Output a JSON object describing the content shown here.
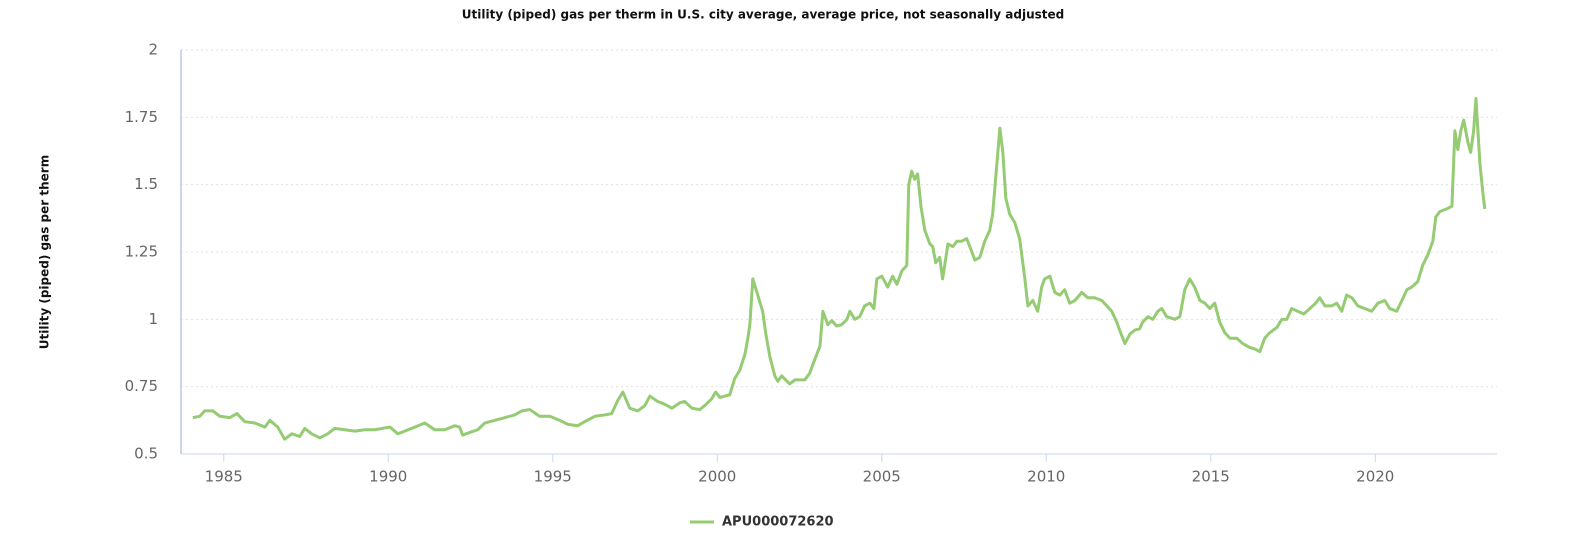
{
  "chart_data": {
    "type": "line",
    "title": "Utility (piped) gas per therm in U.S. city average, average price, not seasonally adjusted",
    "y_label": "Utility (piped) gas per therm",
    "xlim": [
      1983.7,
      2023.7
    ],
    "xticks": [
      1985,
      1990,
      1995,
      2000,
      2005,
      2010,
      2015,
      2020
    ],
    "ylim": [
      0.5,
      2
    ],
    "yticks": [
      0.5,
      0.75,
      1,
      1.25,
      1.5,
      1.75,
      2
    ],
    "grid": true,
    "x": [
      1984.06,
      1984.27,
      1984.42,
      1984.67,
      1984.88,
      1985.18,
      1985.4,
      1985.64,
      1985.94,
      1986.25,
      1986.4,
      1986.64,
      1986.85,
      1987.07,
      1987.31,
      1987.46,
      1987.67,
      1987.92,
      1988.16,
      1988.37,
      1988.68,
      1988.98,
      1989.29,
      1989.59,
      1990.05,
      1990.29,
      1990.5,
      1990.81,
      1991.11,
      1991.41,
      1991.72,
      1992.02,
      1992.17,
      1992.26,
      1992.48,
      1992.72,
      1992.93,
      1993.24,
      1993.54,
      1993.84,
      1994.06,
      1994.3,
      1994.6,
      1994.91,
      1995.21,
      1995.46,
      1995.76,
      1995.97,
      1996.28,
      1996.58,
      1996.79,
      1996.98,
      1997.13,
      1997.34,
      1997.58,
      1997.8,
      1997.95,
      1998.19,
      1998.4,
      1998.62,
      1998.86,
      1999.01,
      1999.23,
      1999.47,
      1999.62,
      1999.83,
      1999.95,
      2000.08,
      2000.38,
      2000.53,
      2000.68,
      2000.84,
      2000.93,
      2000.99,
      2001.08,
      2001.23,
      2001.38,
      2001.47,
      2001.6,
      2001.75,
      2001.84,
      2001.96,
      2002.2,
      2002.36,
      2002.66,
      2002.81,
      2002.96,
      2003.12,
      2003.21,
      2003.36,
      2003.48,
      2003.63,
      2003.78,
      2003.94,
      2004.03,
      2004.18,
      2004.33,
      2004.48,
      2004.64,
      2004.76,
      2004.85,
      2005.0,
      2005.18,
      2005.33,
      2005.46,
      2005.61,
      2005.76,
      2005.82,
      2005.91,
      2006.0,
      2006.09,
      2006.19,
      2006.31,
      2006.46,
      2006.55,
      2006.64,
      2006.76,
      2006.85,
      2006.95,
      2007.01,
      2007.16,
      2007.28,
      2007.43,
      2007.58,
      2007.74,
      2007.83,
      2007.98,
      2008.13,
      2008.28,
      2008.37,
      2008.5,
      2008.59,
      2008.68,
      2008.77,
      2008.89,
      2009.04,
      2009.19,
      2009.35,
      2009.44,
      2009.59,
      2009.74,
      2009.86,
      2009.95,
      2010.11,
      2010.26,
      2010.41,
      2010.56,
      2010.71,
      2010.87,
      2011.08,
      2011.26,
      2011.47,
      2011.69,
      2011.84,
      2011.99,
      2012.14,
      2012.23,
      2012.39,
      2012.54,
      2012.69,
      2012.84,
      2012.93,
      2013.09,
      2013.24,
      2013.39,
      2013.51,
      2013.66,
      2013.91,
      2014.06,
      2014.21,
      2014.36,
      2014.51,
      2014.67,
      2014.82,
      2014.97,
      2015.12,
      2015.27,
      2015.43,
      2015.58,
      2015.79,
      2015.97,
      2016.19,
      2016.34,
      2016.49,
      2016.64,
      2016.79,
      2017.01,
      2017.16,
      2017.31,
      2017.46,
      2017.64,
      2017.83,
      2018.01,
      2018.19,
      2018.31,
      2018.47,
      2018.68,
      2018.83,
      2018.98,
      2019.13,
      2019.29,
      2019.47,
      2019.68,
      2019.89,
      2020.08,
      2020.29,
      2020.44,
      2020.65,
      2020.81,
      2020.96,
      2021.11,
      2021.29,
      2021.44,
      2021.6,
      2021.75,
      2021.84,
      2021.96,
      2022.17,
      2022.33,
      2022.42,
      2022.51,
      2022.6,
      2022.69,
      2022.81,
      2022.9,
      2022.99,
      2023.06,
      2023.12,
      2023.18,
      2023.27,
      2023.33
    ],
    "series": [
      {
        "name": "APU000072620",
        "color": "#95cb72",
        "values": [
          0.635,
          0.64,
          0.66,
          0.66,
          0.64,
          0.635,
          0.65,
          0.62,
          0.615,
          0.6,
          0.625,
          0.6,
          0.555,
          0.575,
          0.565,
          0.595,
          0.575,
          0.56,
          0.575,
          0.595,
          0.59,
          0.585,
          0.59,
          0.59,
          0.6,
          0.575,
          0.585,
          0.6,
          0.615,
          0.59,
          0.59,
          0.605,
          0.6,
          0.57,
          0.58,
          0.59,
          0.615,
          0.625,
          0.635,
          0.645,
          0.66,
          0.665,
          0.64,
          0.64,
          0.625,
          0.61,
          0.605,
          0.62,
          0.64,
          0.645,
          0.65,
          0.7,
          0.73,
          0.67,
          0.66,
          0.68,
          0.715,
          0.695,
          0.685,
          0.67,
          0.69,
          0.695,
          0.67,
          0.665,
          0.68,
          0.705,
          0.73,
          0.71,
          0.72,
          0.78,
          0.81,
          0.87,
          0.93,
          0.98,
          1.15,
          1.09,
          1.03,
          0.95,
          0.86,
          0.79,
          0.77,
          0.79,
          0.76,
          0.775,
          0.775,
          0.8,
          0.85,
          0.9,
          1.03,
          0.98,
          0.995,
          0.975,
          0.98,
          1.0,
          1.03,
          1.0,
          1.01,
          1.05,
          1.06,
          1.04,
          1.15,
          1.16,
          1.12,
          1.16,
          1.13,
          1.18,
          1.2,
          1.5,
          1.55,
          1.52,
          1.54,
          1.42,
          1.33,
          1.28,
          1.27,
          1.21,
          1.23,
          1.15,
          1.23,
          1.28,
          1.27,
          1.29,
          1.29,
          1.3,
          1.25,
          1.22,
          1.23,
          1.29,
          1.33,
          1.39,
          1.58,
          1.71,
          1.62,
          1.45,
          1.39,
          1.36,
          1.3,
          1.15,
          1.05,
          1.07,
          1.03,
          1.12,
          1.15,
          1.16,
          1.1,
          1.09,
          1.11,
          1.06,
          1.07,
          1.1,
          1.08,
          1.08,
          1.07,
          1.05,
          1.03,
          0.99,
          0.96,
          0.91,
          0.945,
          0.96,
          0.965,
          0.99,
          1.01,
          1.0,
          1.03,
          1.04,
          1.01,
          1.0,
          1.01,
          1.11,
          1.15,
          1.12,
          1.07,
          1.06,
          1.04,
          1.06,
          0.99,
          0.95,
          0.93,
          0.93,
          0.91,
          0.895,
          0.89,
          0.88,
          0.93,
          0.95,
          0.97,
          1.0,
          1.0,
          1.04,
          1.03,
          1.02,
          1.04,
          1.06,
          1.08,
          1.05,
          1.05,
          1.06,
          1.03,
          1.09,
          1.08,
          1.05,
          1.04,
          1.03,
          1.06,
          1.07,
          1.04,
          1.03,
          1.07,
          1.11,
          1.12,
          1.14,
          1.2,
          1.24,
          1.29,
          1.38,
          1.4,
          1.41,
          1.42,
          1.7,
          1.63,
          1.7,
          1.74,
          1.66,
          1.62,
          1.7,
          1.82,
          1.7,
          1.58,
          1.47,
          1.41
        ]
      }
    ]
  }
}
